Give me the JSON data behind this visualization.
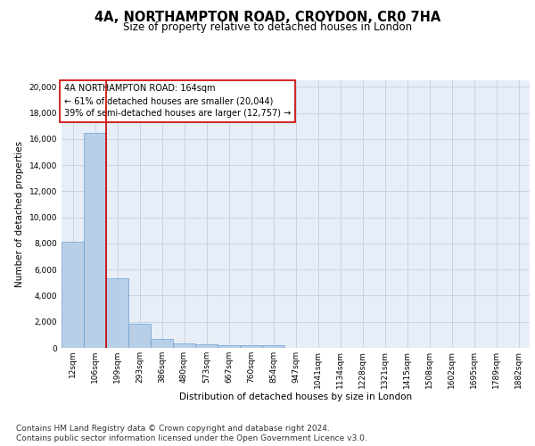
{
  "title_line1": "4A, NORTHAMPTON ROAD, CROYDON, CR0 7HA",
  "title_line2": "Size of property relative to detached houses in London",
  "xlabel": "Distribution of detached houses by size in London",
  "ylabel": "Number of detached properties",
  "categories": [
    "12sqm",
    "106sqm",
    "199sqm",
    "293sqm",
    "386sqm",
    "480sqm",
    "573sqm",
    "667sqm",
    "760sqm",
    "854sqm",
    "947sqm",
    "1041sqm",
    "1134sqm",
    "1228sqm",
    "1321sqm",
    "1415sqm",
    "1508sqm",
    "1602sqm",
    "1695sqm",
    "1789sqm",
    "1882sqm"
  ],
  "bar_heights": [
    8100,
    16500,
    5300,
    1850,
    700,
    350,
    270,
    210,
    180,
    200,
    0,
    0,
    0,
    0,
    0,
    0,
    0,
    0,
    0,
    0,
    0
  ],
  "bar_color": "#b8cfe8",
  "bar_edge_color": "#6a9fd0",
  "grid_color": "#c8d4e4",
  "background_color": "#e8eef8",
  "vline_x": 1.5,
  "vline_color": "#cc0000",
  "annotation_text": "4A NORTHAMPTON ROAD: 164sqm\n← 61% of detached houses are smaller (20,044)\n39% of semi-detached houses are larger (12,757) →",
  "annotation_box_color": "#ffffff",
  "annotation_box_edge": "#cc0000",
  "ylim": [
    0,
    20500
  ],
  "yticks": [
    0,
    2000,
    4000,
    6000,
    8000,
    10000,
    12000,
    14000,
    16000,
    18000,
    20000
  ],
  "footer_line1": "Contains HM Land Registry data © Crown copyright and database right 2024.",
  "footer_line2": "Contains public sector information licensed under the Open Government Licence v3.0.",
  "title_fontsize": 10.5,
  "subtitle_fontsize": 8.5,
  "axis_label_fontsize": 7.5,
  "ylabel_fontsize": 7.5,
  "tick_fontsize": 6.5,
  "annotation_fontsize": 7.0,
  "footer_fontsize": 6.5
}
